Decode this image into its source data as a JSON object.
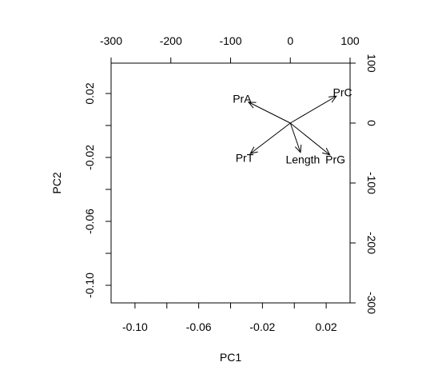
{
  "chart_data": {
    "type": "biplot",
    "xlabel": "PC1",
    "ylabel": "PC2",
    "xlim": [
      -0.115,
      0.035
    ],
    "ylim": [
      -0.111,
      0.039
    ],
    "x_ticks": [
      -0.1,
      -0.06,
      -0.02,
      0.02
    ],
    "x_tick_labels": [
      "-0.10",
      "-0.06",
      "-0.02",
      "0.02"
    ],
    "y_ticks": [
      -0.1,
      -0.06,
      -0.02,
      0.02
    ],
    "y_tick_labels": [
      "-0.10",
      "-0.06",
      "-0.02",
      "0.02"
    ],
    "x_minor_ticks": [
      -0.08,
      -0.04,
      0.0
    ],
    "y_minor_ticks": [
      -0.08,
      -0.04,
      0.0
    ],
    "x_ticks_top": [
      -300,
      -200,
      -100,
      0,
      100
    ],
    "x_tick_labels_top": [
      "-300",
      "-200",
      "-100",
      "0",
      "100"
    ],
    "y_ticks_right": [
      -300,
      -200,
      -100,
      0,
      100
    ],
    "y_tick_labels_right": [
      "-300",
      "-200",
      "-100",
      "0",
      "100"
    ],
    "top_axis_range": [
      -300,
      100
    ],
    "right_axis_range": [
      -300,
      100
    ],
    "loadings": [
      {
        "name": "PrA",
        "label": "PrA",
        "x": -70,
        "y": 35
      },
      {
        "name": "PrC",
        "label": "PrC",
        "x": 77,
        "y": 45
      },
      {
        "name": "PrT",
        "label": "PrT",
        "x": -67,
        "y": -51
      },
      {
        "name": "Length",
        "label": "Length",
        "x": 17,
        "y": -49
      },
      {
        "name": "PrG",
        "label": "PrG",
        "x": 66,
        "y": -53
      }
    ],
    "grid": false,
    "legend": "none"
  }
}
